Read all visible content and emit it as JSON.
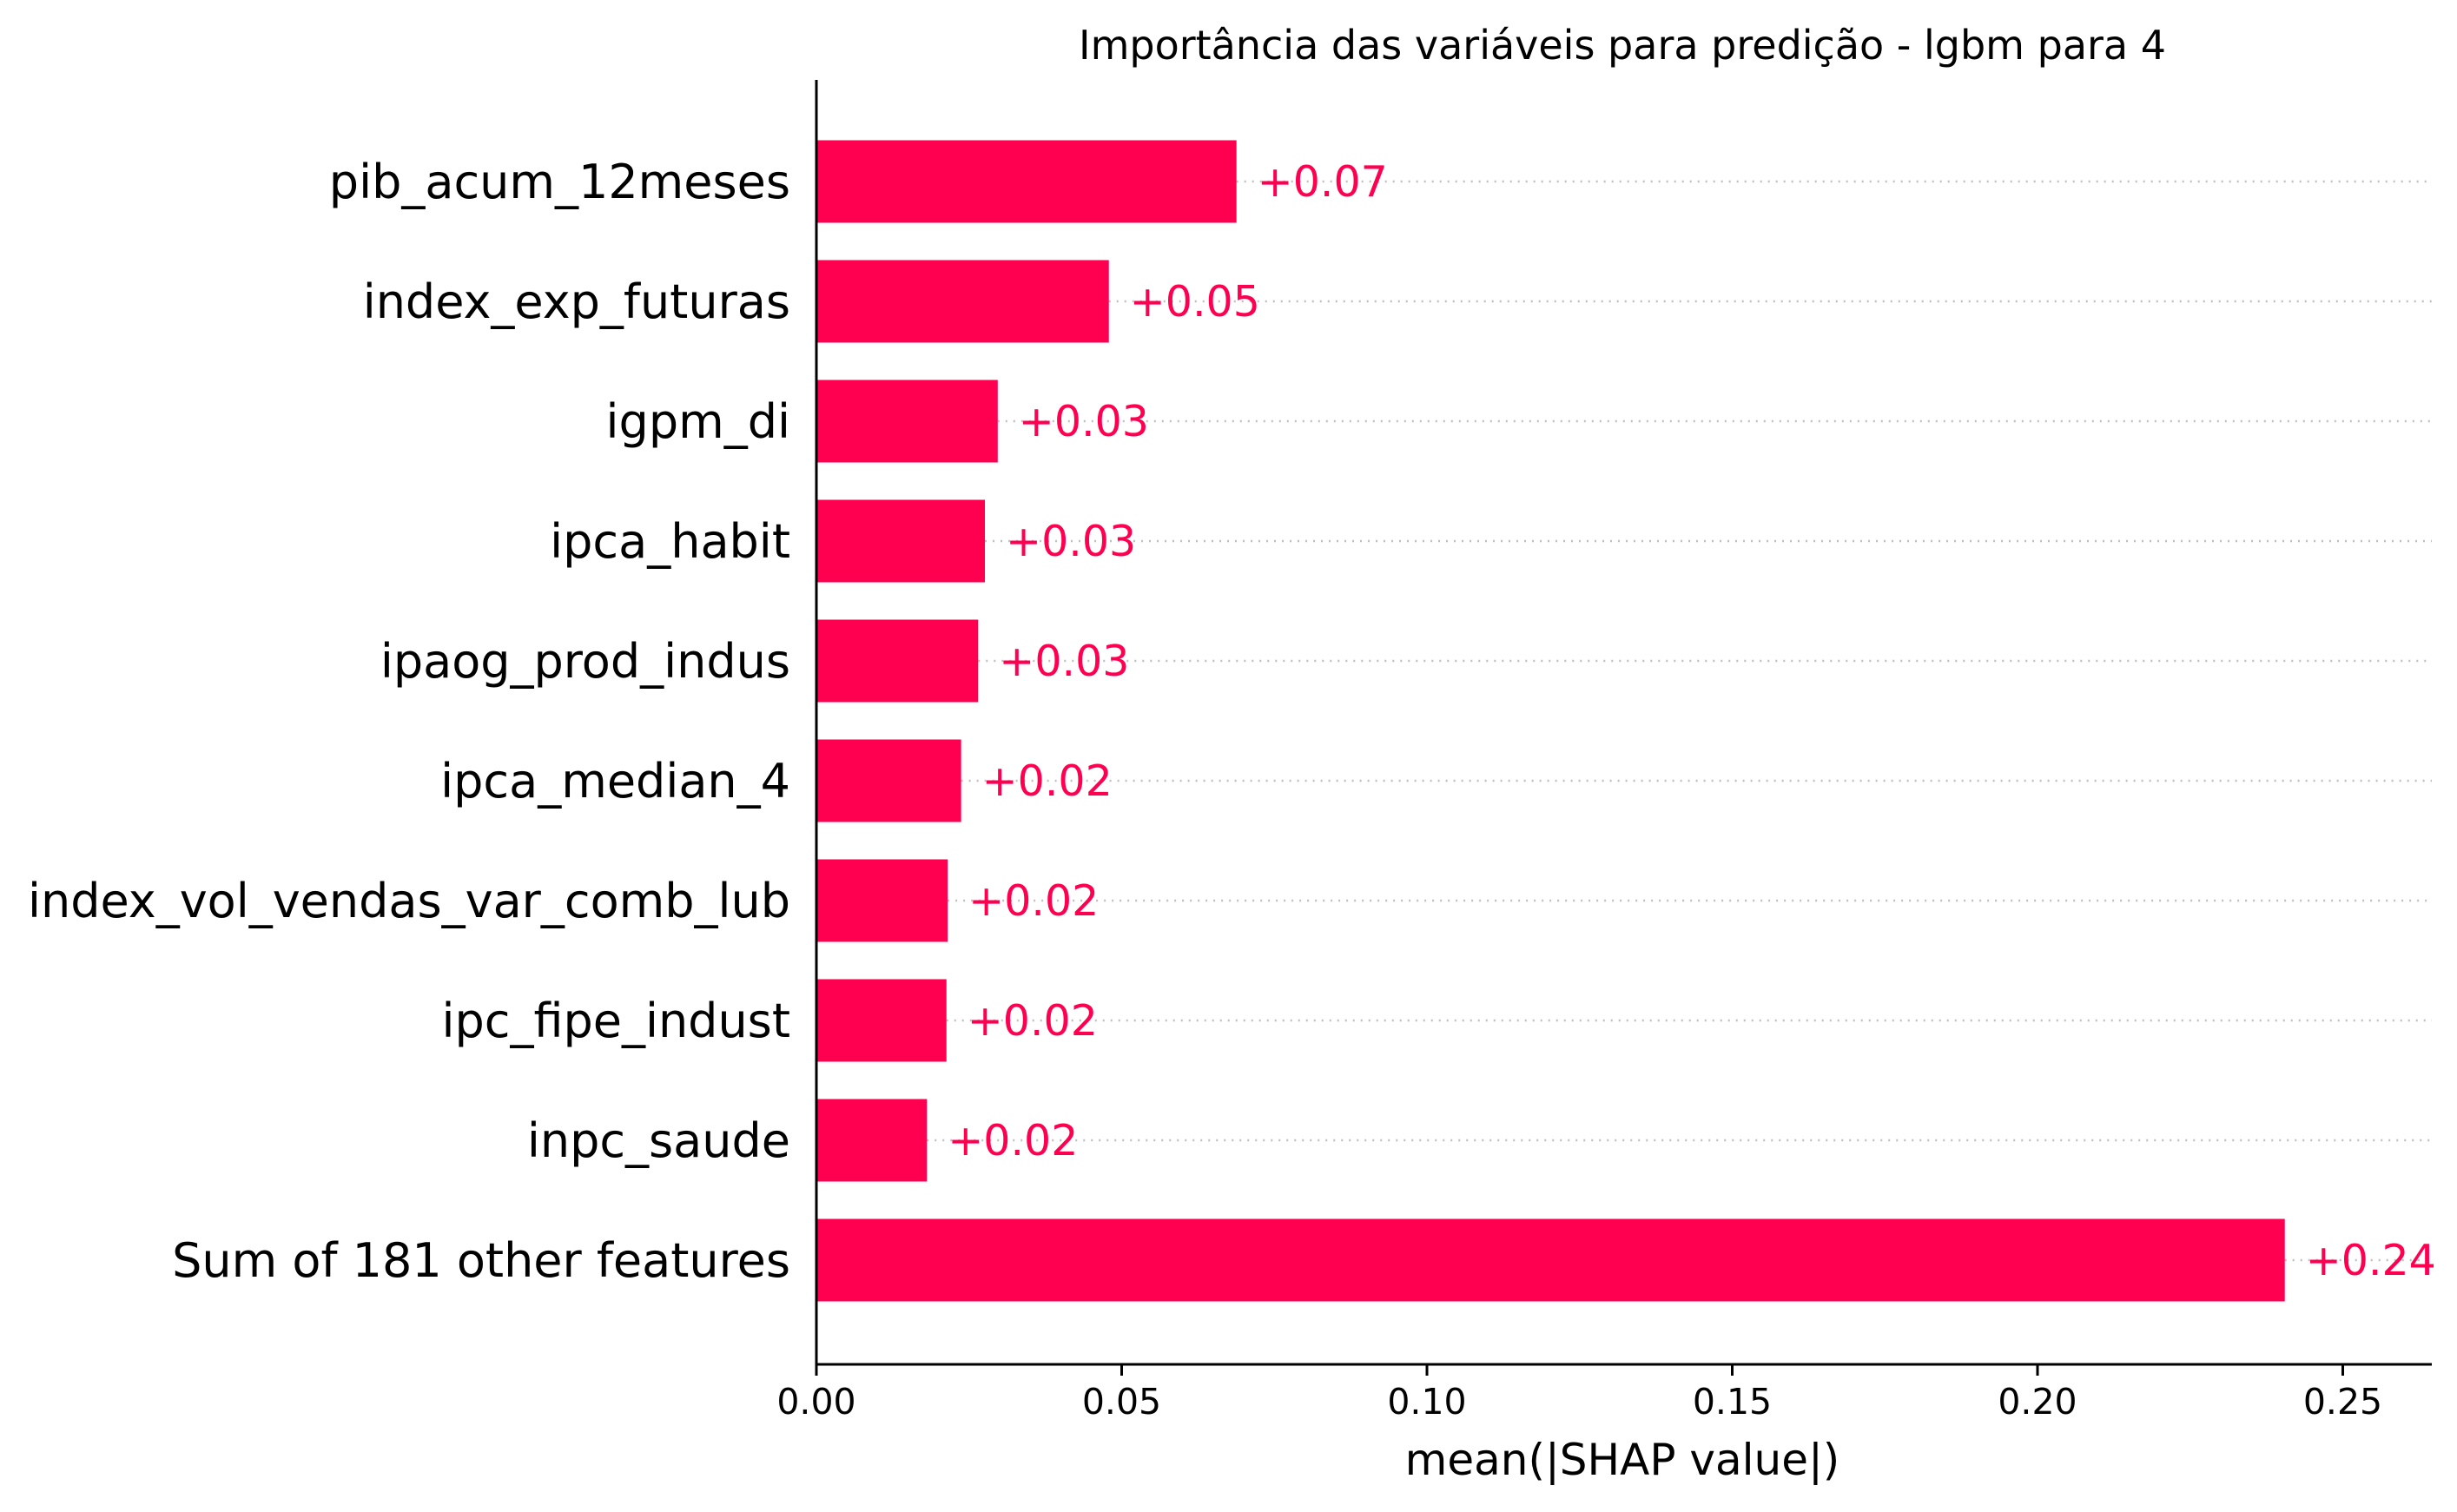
{
  "chart_data": {
    "type": "bar",
    "orientation": "horizontal",
    "title": "Importância das variáveis para predição - lgbm para 4",
    "xlabel": "mean(|SHAP value|)",
    "ylabel": "",
    "xlim": [
      0,
      0.265
    ],
    "xticks": [
      0.0,
      0.05,
      0.1,
      0.15,
      0.2,
      0.25
    ],
    "xtick_labels": [
      "0.00",
      "0.05",
      "0.10",
      "0.15",
      "0.20",
      "0.25"
    ],
    "grid": "dotted horizontal lines per bar",
    "bar_color": "#ff0051",
    "categories": [
      "pib_acum_12meses",
      "index_exp_futuras",
      "igpm_di",
      "ipca_habit",
      "ipaog_prod_indus",
      "ipca_median_4",
      "index_vol_vendas_var_comb_lub",
      "ipc_fipe_indust",
      "inpc_saude",
      "Sum of 181 other features"
    ],
    "values": [
      0.0688,
      0.0479,
      0.0297,
      0.0276,
      0.0265,
      0.0237,
      0.0215,
      0.0213,
      0.0181,
      0.2405
    ],
    "data_labels": [
      "+0.07",
      "+0.05",
      "+0.03",
      "+0.03",
      "+0.03",
      "+0.02",
      "+0.02",
      "+0.02",
      "+0.02",
      "+0.24"
    ]
  }
}
